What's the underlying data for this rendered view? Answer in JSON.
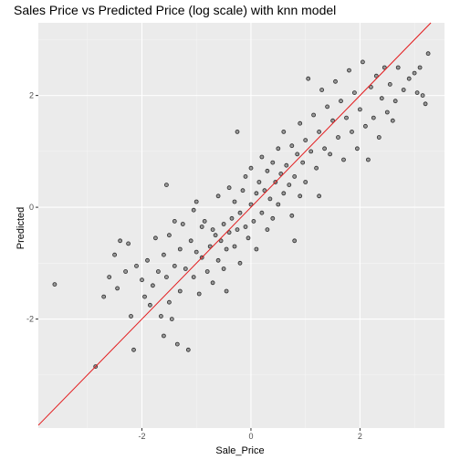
{
  "chart_data": {
    "type": "scatter",
    "title": "Sales Price vs Predicted Price (log scale) with knn model",
    "xlabel": "Sale_Price",
    "ylabel": "Predicted",
    "xlim": [
      -3.9,
      3.55
    ],
    "ylim": [
      -3.95,
      3.3
    ],
    "xticks": [
      -2,
      0,
      2
    ],
    "yticks": [
      -2,
      0,
      2
    ],
    "xtick_labels": [
      "-2",
      "0",
      "2"
    ],
    "ytick_labels": [
      "-2",
      "0",
      "2"
    ],
    "grid": true,
    "reference_line": {
      "slope": 1,
      "intercept": 0,
      "color": "#e31a1c"
    },
    "colors": {
      "panel": "#ebebeb",
      "grid_major": "#ffffff",
      "grid_minor": "#f5f5f5",
      "point_fill": "#555555",
      "point_stroke": "#111111"
    },
    "series": [
      {
        "points": [
          [
            -3.6,
            -1.38
          ],
          [
            -2.85,
            -2.85
          ],
          [
            -2.7,
            -1.6
          ],
          [
            -2.6,
            -1.25
          ],
          [
            -2.5,
            -0.85
          ],
          [
            -2.45,
            -1.45
          ],
          [
            -2.4,
            -0.6
          ],
          [
            -2.3,
            -1.15
          ],
          [
            -2.25,
            -0.65
          ],
          [
            -2.2,
            -1.95
          ],
          [
            -2.15,
            -2.55
          ],
          [
            -2.1,
            -1.05
          ],
          [
            -2.0,
            -1.3
          ],
          [
            -1.95,
            -1.6
          ],
          [
            -1.9,
            -0.95
          ],
          [
            -1.85,
            -1.75
          ],
          [
            -1.8,
            -1.4
          ],
          [
            -1.75,
            -0.55
          ],
          [
            -1.7,
            -1.15
          ],
          [
            -1.65,
            -1.95
          ],
          [
            -1.6,
            -0.85
          ],
          [
            -1.6,
            -2.3
          ],
          [
            -1.55,
            -1.25
          ],
          [
            -1.5,
            -0.5
          ],
          [
            -1.5,
            -1.7
          ],
          [
            -1.45,
            -2.0
          ],
          [
            -1.4,
            -0.25
          ],
          [
            -1.4,
            -1.05
          ],
          [
            -1.35,
            -2.45
          ],
          [
            -1.3,
            -0.75
          ],
          [
            -1.3,
            -1.5
          ],
          [
            -1.25,
            -0.3
          ],
          [
            -1.2,
            -1.1
          ],
          [
            -1.15,
            -2.55
          ],
          [
            -1.1,
            -0.6
          ],
          [
            -1.05,
            -1.25
          ],
          [
            -1.0,
            -0.8
          ],
          [
            -1.0,
            0.1
          ],
          [
            -0.95,
            -1.55
          ],
          [
            -0.9,
            -0.9
          ],
          [
            -0.9,
            -0.35
          ],
          [
            -0.85,
            -0.25
          ],
          [
            -0.8,
            -1.15
          ],
          [
            -0.75,
            -0.7
          ],
          [
            -0.7,
            -0.4
          ],
          [
            -0.7,
            -1.35
          ],
          [
            -0.65,
            -0.5
          ],
          [
            -0.6,
            -0.95
          ],
          [
            -0.6,
            0.2
          ],
          [
            -0.55,
            -0.6
          ],
          [
            -0.5,
            -0.3
          ],
          [
            -0.5,
            -1.1
          ],
          [
            -0.45,
            -0.75
          ],
          [
            -0.4,
            -0.45
          ],
          [
            -0.4,
            0.35
          ],
          [
            -0.35,
            -0.2
          ],
          [
            -0.3,
            -0.7
          ],
          [
            -0.3,
            0.1
          ],
          [
            -0.25,
            -0.4
          ],
          [
            -0.2,
            -0.1
          ],
          [
            -0.2,
            -1.0
          ],
          [
            -0.15,
            0.3
          ],
          [
            -0.1,
            -0.35
          ],
          [
            -0.1,
            0.55
          ],
          [
            -0.05,
            -0.55
          ],
          [
            0.0,
            0.05
          ],
          [
            0.0,
            0.7
          ],
          [
            0.05,
            -0.25
          ],
          [
            0.1,
            0.25
          ],
          [
            0.1,
            -0.75
          ],
          [
            0.15,
            0.45
          ],
          [
            0.2,
            -0.1
          ],
          [
            0.2,
            0.9
          ],
          [
            0.25,
            0.3
          ],
          [
            0.3,
            -0.4
          ],
          [
            0.3,
            0.65
          ],
          [
            0.35,
            0.15
          ],
          [
            0.4,
            0.8
          ],
          [
            0.4,
            -0.2
          ],
          [
            0.45,
            0.45
          ],
          [
            0.5,
            1.05
          ],
          [
            0.5,
            0.05
          ],
          [
            0.55,
            0.6
          ],
          [
            0.6,
            0.25
          ],
          [
            0.6,
            1.35
          ],
          [
            0.65,
            0.75
          ],
          [
            0.7,
            0.4
          ],
          [
            0.75,
            1.1
          ],
          [
            0.75,
            -0.15
          ],
          [
            0.8,
            0.55
          ],
          [
            0.85,
            0.95
          ],
          [
            0.9,
            0.2
          ],
          [
            0.9,
            1.5
          ],
          [
            0.95,
            0.8
          ],
          [
            1.0,
            1.2
          ],
          [
            1.0,
            0.45
          ],
          [
            1.05,
            2.3
          ],
          [
            1.1,
            1.0
          ],
          [
            1.15,
            1.65
          ],
          [
            1.2,
            0.7
          ],
          [
            1.25,
            1.35
          ],
          [
            1.3,
            2.1
          ],
          [
            1.35,
            1.05
          ],
          [
            1.4,
            1.8
          ],
          [
            1.45,
            0.95
          ],
          [
            1.5,
            1.55
          ],
          [
            1.55,
            2.25
          ],
          [
            1.6,
            1.25
          ],
          [
            1.65,
            1.9
          ],
          [
            1.7,
            0.85
          ],
          [
            1.75,
            1.6
          ],
          [
            1.8,
            2.45
          ],
          [
            1.85,
            1.35
          ],
          [
            1.9,
            2.05
          ],
          [
            1.95,
            1.05
          ],
          [
            2.0,
            1.75
          ],
          [
            2.05,
            2.6
          ],
          [
            2.1,
            1.45
          ],
          [
            2.15,
            0.85
          ],
          [
            2.2,
            2.15
          ],
          [
            2.25,
            1.6
          ],
          [
            2.3,
            2.35
          ],
          [
            2.35,
            1.25
          ],
          [
            2.4,
            1.95
          ],
          [
            2.45,
            2.5
          ],
          [
            2.5,
            1.7
          ],
          [
            2.55,
            2.2
          ],
          [
            2.6,
            1.55
          ],
          [
            2.7,
            2.5
          ],
          [
            2.8,
            2.1
          ],
          [
            2.9,
            2.3
          ],
          [
            3.0,
            2.4
          ],
          [
            2.65,
            1.9
          ],
          [
            3.05,
            2.05
          ],
          [
            3.1,
            2.5
          ],
          [
            3.15,
            2.0
          ],
          [
            3.2,
            1.85
          ],
          [
            3.25,
            2.75
          ],
          [
            -0.25,
            1.35
          ],
          [
            0.8,
            -0.6
          ],
          [
            -1.55,
            0.4
          ],
          [
            -0.45,
            -1.5
          ],
          [
            1.25,
            0.2
          ],
          [
            -1.05,
            -0.05
          ]
        ]
      }
    ]
  }
}
